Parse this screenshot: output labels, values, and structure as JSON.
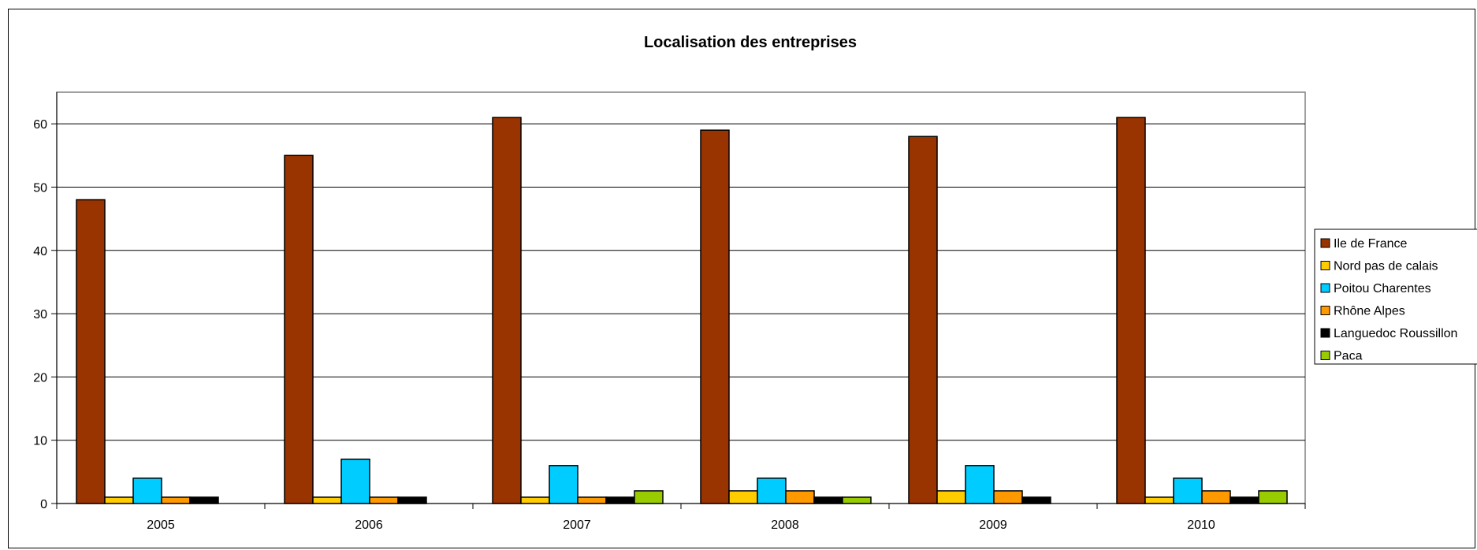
{
  "chart_data": {
    "type": "bar",
    "title": "Localisation des entreprises",
    "xlabel": "",
    "ylabel": "",
    "categories": [
      "2005",
      "2006",
      "2007",
      "2008",
      "2009",
      "2010"
    ],
    "ylim": [
      0,
      65
    ],
    "yticks": [
      0,
      10,
      20,
      30,
      40,
      50,
      60
    ],
    "grid": true,
    "legend_position": "right",
    "series": [
      {
        "name": "Ile de France",
        "color": "#993300",
        "values": [
          48,
          55,
          61,
          59,
          58,
          61
        ]
      },
      {
        "name": "Nord pas de calais",
        "color": "#FFCC00",
        "values": [
          1,
          1,
          1,
          2,
          2,
          1
        ]
      },
      {
        "name": "Poitou Charentes",
        "color": "#00CCFF",
        "values": [
          4,
          7,
          6,
          4,
          6,
          4
        ]
      },
      {
        "name": "Rhône Alpes",
        "color": "#FF9900",
        "values": [
          1,
          1,
          1,
          2,
          2,
          2
        ]
      },
      {
        "name": "Languedoc Roussillon",
        "color": "#000000",
        "values": [
          1,
          1,
          1,
          1,
          1,
          1
        ]
      },
      {
        "name": "Paca",
        "color": "#99CC00",
        "values": [
          0,
          0,
          2,
          1,
          0,
          2
        ]
      }
    ]
  }
}
